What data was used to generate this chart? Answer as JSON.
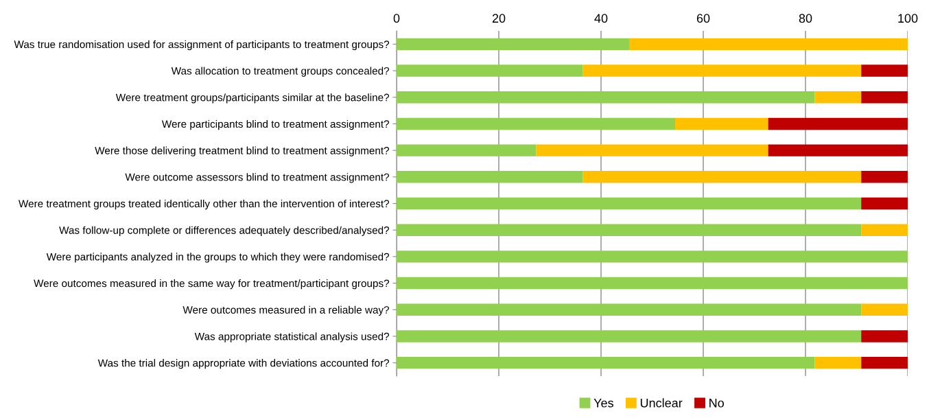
{
  "chart_data": {
    "type": "bar",
    "orientation": "horizontal",
    "stacked": true,
    "categories": [
      "Was true randomisation used for assignment of participants to treatment groups?",
      "Was allocation to treatment groups concealed?",
      "Were treatment groups/participants similar at the baseline?",
      "Were participants blind to treatment assignment?",
      "Were those delivering treatment blind to treatment assignment?",
      "Were outcome assessors blind to treatment assignment?",
      "Were treatment groups treated identically other than the intervention of interest?",
      "Was follow-up complete or differences adequately described/analysed?",
      "Were participants analyzed in the groups to which they were randomised?",
      "Were outcomes measured in the same way for treatment/participant groups?",
      "Were outcomes measured in a reliable way?",
      "Was appropriate statistical analysis used?",
      "Was the trial design appropriate with deviations accounted for?"
    ],
    "series": [
      {
        "name": "Yes",
        "color": "#92d050",
        "values": [
          45.5,
          36.4,
          81.8,
          54.5,
          27.3,
          36.4,
          90.9,
          90.9,
          100,
          100,
          90.9,
          90.9,
          81.8
        ]
      },
      {
        "name": "Unclear",
        "color": "#ffc000",
        "values": [
          54.5,
          54.5,
          9.1,
          18.2,
          45.4,
          54.5,
          0,
          9.1,
          0,
          0,
          9.1,
          0,
          9.1
        ]
      },
      {
        "name": "No",
        "color": "#c00000",
        "values": [
          0,
          9.1,
          9.1,
          27.3,
          27.3,
          9.1,
          9.1,
          0,
          0,
          0,
          0,
          9.1,
          9.1
        ]
      }
    ],
    "xlim": [
      0,
      100
    ],
    "xticks": [
      0,
      20,
      40,
      60,
      80,
      100
    ],
    "grid": "x",
    "legend": "bottom"
  }
}
